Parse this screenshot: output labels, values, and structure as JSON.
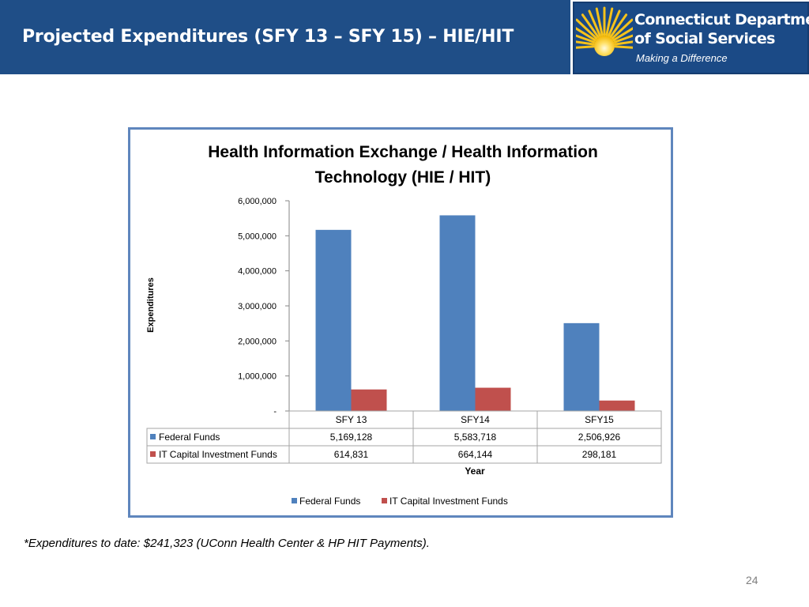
{
  "slide": {
    "title": "Projected Expenditures (SFY 13 – SFY 15) – HIE/HIT",
    "footnote": "*Expenditures to date: $241,323 (UConn Health Center & HP HIT Payments).",
    "page_number": "24"
  },
  "logo": {
    "line1": "Connecticut Department",
    "line2": "of Social Services",
    "tagline": "Making a Difference"
  },
  "colors": {
    "header": "#1f4e87",
    "federal": "#4f81bd",
    "it_capital": "#c0504d"
  },
  "chart_data": {
    "type": "bar",
    "title_lines": [
      "Health Information Exchange / Health Information",
      "Technology (HIE / HIT)"
    ],
    "categories": [
      "SFY 13",
      "SFY14",
      "SFY15"
    ],
    "series": [
      {
        "name": "Federal Funds",
        "values": [
          5169128,
          5583718,
          2506926
        ],
        "labels": [
          "5,169,128",
          "5,583,718",
          "2,506,926"
        ],
        "color": "#4f81bd"
      },
      {
        "name": "IT Capital Investment Funds",
        "values": [
          614831,
          664144,
          298181
        ],
        "labels": [
          "614,831",
          "664,144",
          "298,181"
        ],
        "color": "#c0504d"
      }
    ],
    "xlabel": "Year",
    "ylabel": "Expenditures",
    "ylim": [
      0,
      6000000
    ],
    "ytick_values": [
      0,
      1000000,
      2000000,
      3000000,
      4000000,
      5000000,
      6000000
    ],
    "ytick_labels": [
      "-",
      "1,000,000",
      "2,000,000",
      "3,000,000",
      "4,000,000",
      "5,000,000",
      "6,000,000"
    ],
    "legend_position": "bottom",
    "grid": false,
    "data_table": true
  }
}
